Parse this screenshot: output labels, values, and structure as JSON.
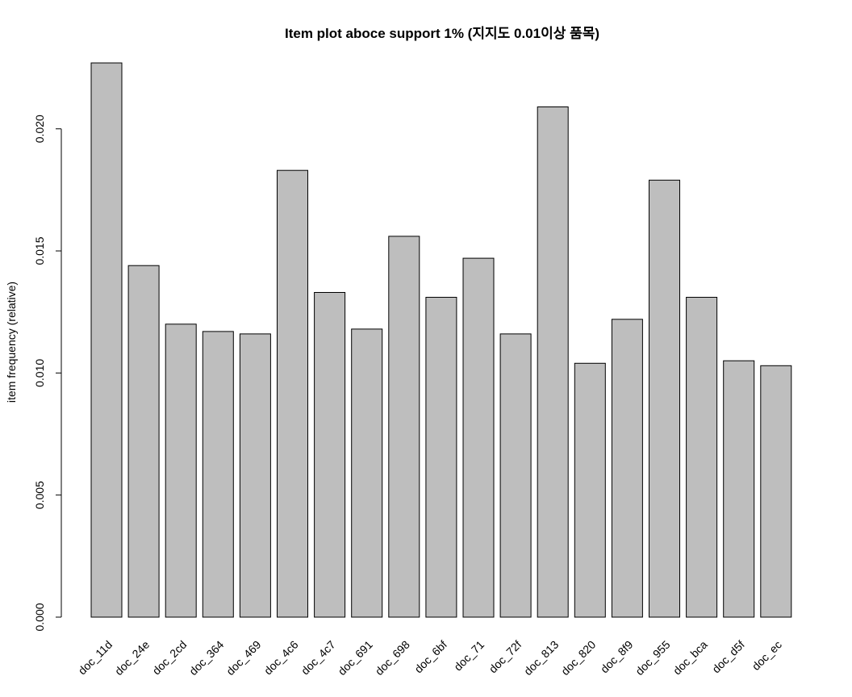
{
  "chart_data": {
    "type": "bar",
    "title": "Item plot aboce support 1%  (지지도 0.01이상 품목)",
    "xlabel": "",
    "ylabel": "item frequency (relative)",
    "ylim": [
      0,
      0.0227
    ],
    "yticks": [
      0.0,
      0.005,
      0.01,
      0.015,
      0.02
    ],
    "ytick_labels": [
      "0.000",
      "0.005",
      "0.010",
      "0.015",
      "0.020"
    ],
    "grid": false,
    "legend": "none",
    "bar_fill": "#bebebe",
    "bar_stroke": "#000000",
    "categories": [
      "doc_11d",
      "doc_24e",
      "doc_2cd",
      "doc_364",
      "doc_469",
      "doc_4c6",
      "doc_4c7",
      "doc_691",
      "doc_698",
      "doc_6bf",
      "doc_71",
      "doc_72f",
      "doc_813",
      "doc_820",
      "doc_8f9",
      "doc_955",
      "doc_bca",
      "doc_d5f",
      "doc_ec"
    ],
    "values": [
      0.0227,
      0.0144,
      0.012,
      0.0117,
      0.0116,
      0.0183,
      0.0133,
      0.0118,
      0.0156,
      0.0131,
      0.0147,
      0.0116,
      0.0209,
      0.0104,
      0.0122,
      0.0179,
      0.0131,
      0.0105,
      0.0103
    ]
  }
}
